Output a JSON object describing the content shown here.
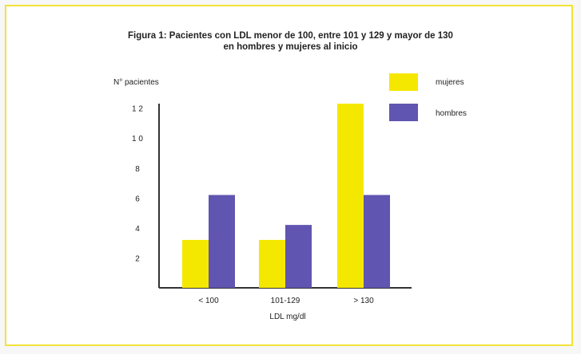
{
  "chart_data": {
    "type": "bar",
    "title": [
      "Figura 1: Pacientes con LDL menor de 100, entre 101 y 129 y mayor de 130",
      "en hombres y mujeres al inicio"
    ],
    "ylabel": "N° pacientes",
    "xlabel": "LDL mg/dl",
    "categories": [
      "< 100",
      "101-129",
      "> 130"
    ],
    "ylim": [
      0,
      12.3
    ],
    "yticks": [
      2,
      4,
      6,
      8,
      10,
      12
    ],
    "ytick_labels": [
      "2",
      "4",
      "6",
      "8",
      "1 0",
      "1 2"
    ],
    "legend_position": "top-right",
    "series": [
      {
        "name": "mujeres",
        "values": [
          3.2,
          3.2,
          12.3
        ],
        "color": "#f5e800"
      },
      {
        "name": "hombres",
        "values": [
          6.2,
          4.2,
          6.2
        ],
        "color": "#6055b0"
      }
    ]
  }
}
